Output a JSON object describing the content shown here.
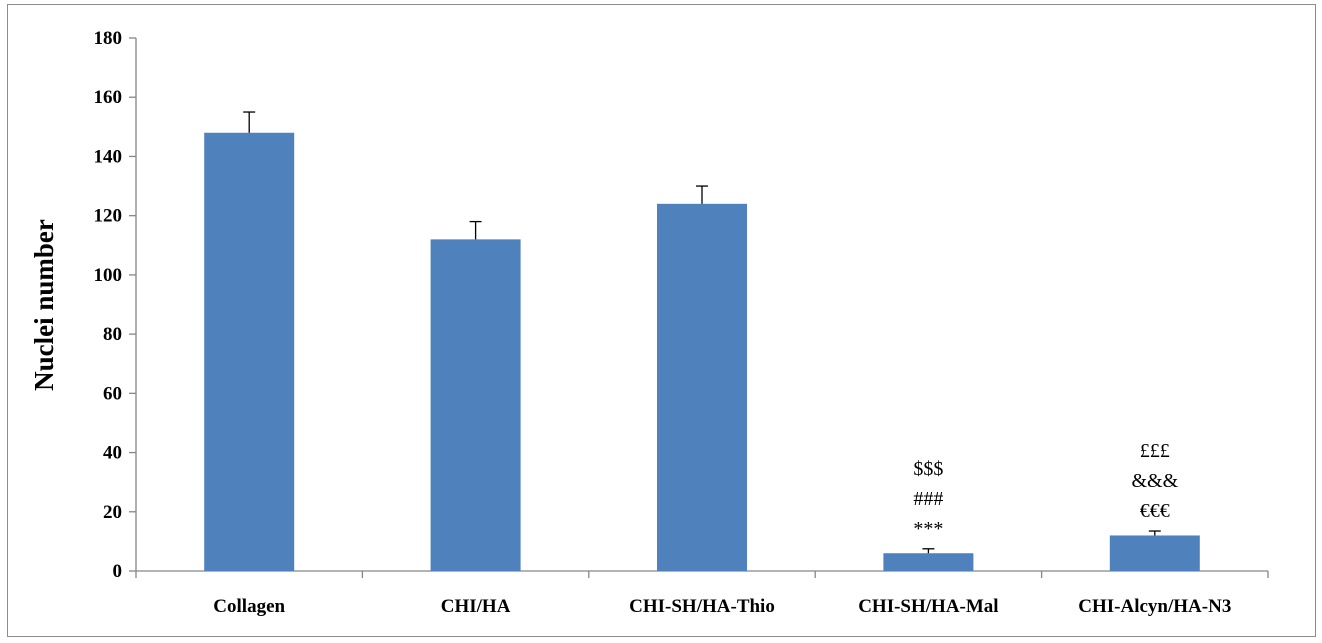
{
  "chart_data": {
    "type": "bar",
    "title": "",
    "xlabel": "",
    "ylabel": "Nuclei number",
    "ylim": [
      0,
      180
    ],
    "yticks": [
      0,
      20,
      40,
      60,
      80,
      100,
      120,
      140,
      160,
      180
    ],
    "categories": [
      "Collagen",
      "CHI/HA",
      "CHI-SH/HA-Thio",
      "CHI-SH/HA-Mal",
      "CHI-Alcyn/HA-N3"
    ],
    "values": [
      148,
      112,
      124,
      6,
      12
    ],
    "error": [
      7,
      6,
      6,
      1.5,
      1.5
    ],
    "annotations": [
      [],
      [],
      [],
      [
        "***",
        "###",
        "$$$"
      ],
      [
        "€€€",
        "&&&",
        "£££"
      ]
    ],
    "bar_color": "#4f81bd",
    "grid": false,
    "legend": "none"
  }
}
